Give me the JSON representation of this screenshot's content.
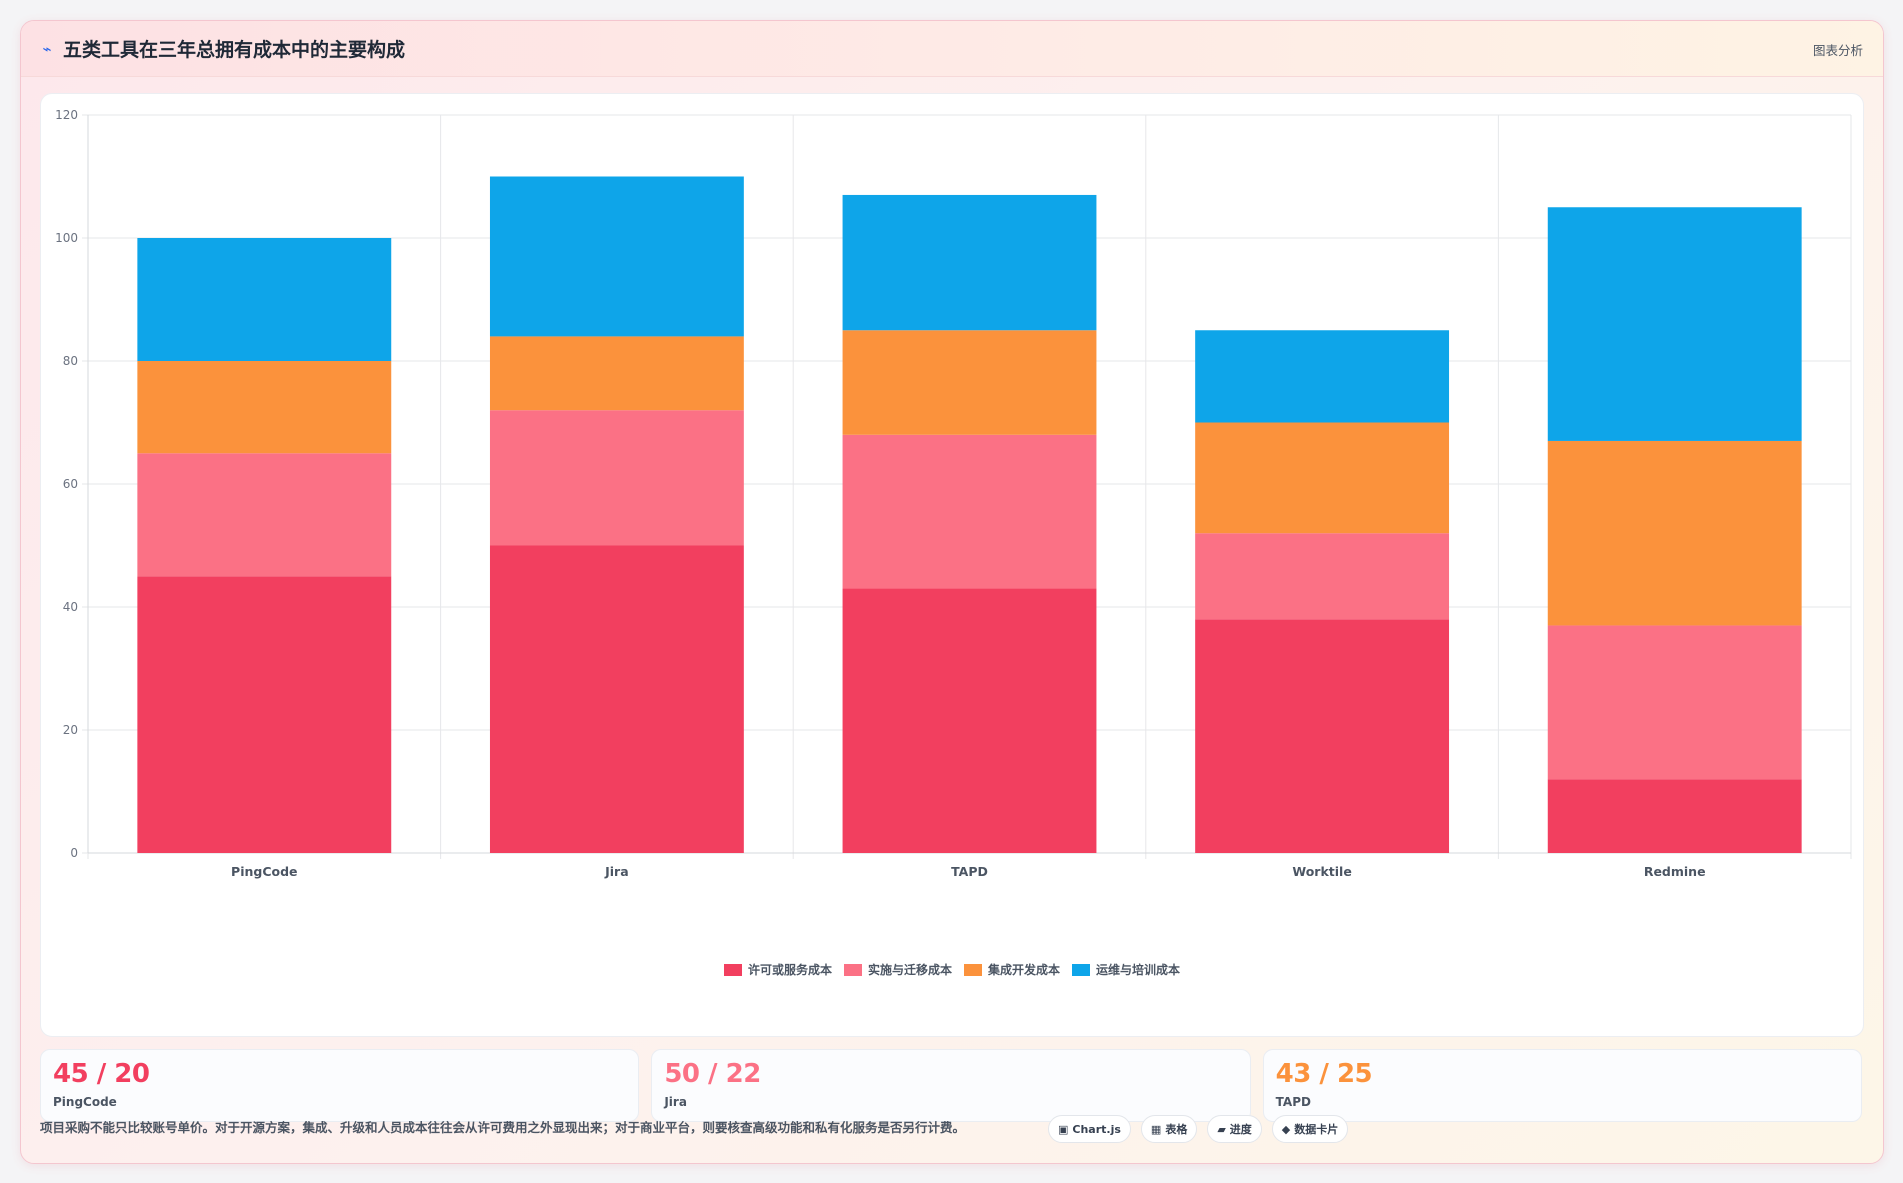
{
  "header": {
    "icon": "chart-bolt-icon",
    "title": "五类工具在三年总拥有成本中的主要构成",
    "tag": "图表分析"
  },
  "chart_data": {
    "type": "bar",
    "stacked": true,
    "categories": [
      "PingCode",
      "Jira",
      "TAPD",
      "Worktile",
      "Redmine"
    ],
    "series": [
      {
        "name": "许可或服务成本",
        "color": "#f23f5f",
        "values": [
          45,
          50,
          43,
          38,
          12
        ]
      },
      {
        "name": "实施与迁移成本",
        "color": "#fb7185",
        "values": [
          20,
          22,
          25,
          14,
          25
        ]
      },
      {
        "name": "集成开发成本",
        "color": "#fb923c",
        "values": [
          15,
          12,
          17,
          18,
          30
        ]
      },
      {
        "name": "运维与培训成本",
        "color": "#0ea5e9",
        "values": [
          20,
          26,
          22,
          15,
          38
        ]
      }
    ],
    "ylim": [
      0,
      120
    ],
    "yticks": [
      0,
      20,
      40,
      60,
      80,
      100,
      120
    ],
    "grid": true,
    "legend": "bottom",
    "title": "",
    "xlabel": "",
    "ylabel": ""
  },
  "stats": [
    {
      "value": "45 / 20",
      "label": "PingCode",
      "color": "#f23f5f"
    },
    {
      "value": "50 / 22",
      "label": "Jira",
      "color": "#fb7185"
    },
    {
      "value": "43 / 25",
      "label": "TAPD",
      "color": "#fb923c"
    }
  ],
  "footer": {
    "note": "项目采购不能只比较账号单价。对于开源方案，集成、升级和人员成本往往会从许可费用之外显现出来；对于商业平台，则要核查高级功能和私有化服务是否另行计费。",
    "chips": [
      {
        "icon": "chart-icon",
        "glyph": "▣",
        "label": "Chart.js"
      },
      {
        "icon": "table-icon",
        "glyph": "▦",
        "label": "表格"
      },
      {
        "icon": "progress-icon",
        "glyph": "▰",
        "label": "进度"
      },
      {
        "icon": "data-card-icon",
        "glyph": "◆",
        "label": "数据卡片"
      }
    ]
  }
}
